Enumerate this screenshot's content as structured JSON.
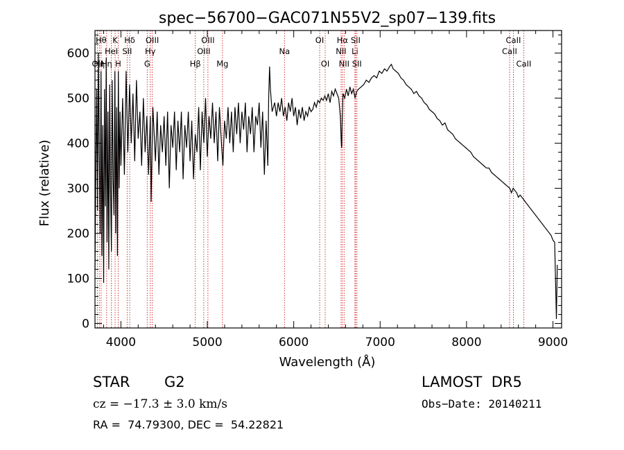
{
  "chart_data": {
    "type": "line",
    "title": "spec−56700−GAC071N55V2_sp07−139.fits",
    "xlabel": "Wavelength (Å)",
    "ylabel": "Flux (relative)",
    "xlim": [
      3700,
      9100
    ],
    "ylim": [
      -10,
      650
    ],
    "xticks": [
      4000,
      5000,
      6000,
      7000,
      8000,
      9000
    ],
    "yticks": [
      0,
      100,
      200,
      300,
      400,
      500,
      600
    ],
    "line_color": "#000000",
    "marker_color": "#cc0000",
    "spectrum": [
      [
        3700,
        120
      ],
      [
        3710,
        340
      ],
      [
        3720,
        520
      ],
      [
        3730,
        250
      ],
      [
        3740,
        600
      ],
      [
        3750,
        380
      ],
      [
        3760,
        200
      ],
      [
        3770,
        560
      ],
      [
        3780,
        150
      ],
      [
        3790,
        440
      ],
      [
        3800,
        90
      ],
      [
        3810,
        520
      ],
      [
        3820,
        260
      ],
      [
        3830,
        590
      ],
      [
        3840,
        180
      ],
      [
        3850,
        470
      ],
      [
        3860,
        120
      ],
      [
        3870,
        530
      ],
      [
        3880,
        300
      ],
      [
        3890,
        160
      ],
      [
        3900,
        540
      ],
      [
        3910,
        320
      ],
      [
        3920,
        240
      ],
      [
        3930,
        560
      ],
      [
        3940,
        200
      ],
      [
        3950,
        480
      ],
      [
        3960,
        150
      ],
      [
        3970,
        560
      ],
      [
        3980,
        300
      ],
      [
        3990,
        470
      ],
      [
        4000,
        350
      ],
      [
        4020,
        500
      ],
      [
        4040,
        330
      ],
      [
        4060,
        560
      ],
      [
        4080,
        380
      ],
      [
        4100,
        530
      ],
      [
        4120,
        400
      ],
      [
        4140,
        510
      ],
      [
        4160,
        360
      ],
      [
        4180,
        540
      ],
      [
        4200,
        410
      ],
      [
        4220,
        470
      ],
      [
        4240,
        350
      ],
      [
        4260,
        500
      ],
      [
        4280,
        380
      ],
      [
        4300,
        460
      ],
      [
        4320,
        330
      ],
      [
        4340,
        460
      ],
      [
        4350,
        270
      ],
      [
        4370,
        480
      ],
      [
        4400,
        360
      ],
      [
        4420,
        470
      ],
      [
        4440,
        330
      ],
      [
        4460,
        440
      ],
      [
        4480,
        380
      ],
      [
        4500,
        460
      ],
      [
        4520,
        350
      ],
      [
        4540,
        470
      ],
      [
        4560,
        300
      ],
      [
        4580,
        440
      ],
      [
        4600,
        390
      ],
      [
        4620,
        470
      ],
      [
        4640,
        340
      ],
      [
        4660,
        450
      ],
      [
        4680,
        380
      ],
      [
        4700,
        470
      ],
      [
        4720,
        320
      ],
      [
        4740,
        440
      ],
      [
        4760,
        390
      ],
      [
        4780,
        470
      ],
      [
        4800,
        360
      ],
      [
        4820,
        450
      ],
      [
        4840,
        320
      ],
      [
        4860,
        420
      ],
      [
        4880,
        380
      ],
      [
        4900,
        480
      ],
      [
        4920,
        340
      ],
      [
        4940,
        470
      ],
      [
        4960,
        400
      ],
      [
        4980,
        500
      ],
      [
        5000,
        370
      ],
      [
        5020,
        460
      ],
      [
        5040,
        410
      ],
      [
        5060,
        490
      ],
      [
        5080,
        400
      ],
      [
        5100,
        470
      ],
      [
        5120,
        360
      ],
      [
        5140,
        480
      ],
      [
        5160,
        410
      ],
      [
        5180,
        350
      ],
      [
        5200,
        450
      ],
      [
        5220,
        410
      ],
      [
        5240,
        480
      ],
      [
        5260,
        400
      ],
      [
        5280,
        470
      ],
      [
        5300,
        380
      ],
      [
        5320,
        480
      ],
      [
        5340,
        420
      ],
      [
        5360,
        490
      ],
      [
        5380,
        400
      ],
      [
        5400,
        470
      ],
      [
        5420,
        430
      ],
      [
        5440,
        490
      ],
      [
        5460,
        380
      ],
      [
        5480,
        460
      ],
      [
        5500,
        420
      ],
      [
        5520,
        480
      ],
      [
        5540,
        380
      ],
      [
        5560,
        460
      ],
      [
        5580,
        440
      ],
      [
        5600,
        490
      ],
      [
        5620,
        390
      ],
      [
        5640,
        470
      ],
      [
        5660,
        330
      ],
      [
        5680,
        450
      ],
      [
        5700,
        350
      ],
      [
        5710,
        500
      ],
      [
        5720,
        570
      ],
      [
        5730,
        520
      ],
      [
        5750,
        470
      ],
      [
        5780,
        490
      ],
      [
        5800,
        460
      ],
      [
        5820,
        490
      ],
      [
        5840,
        470
      ],
      [
        5860,
        500
      ],
      [
        5880,
        460
      ],
      [
        5900,
        480
      ],
      [
        5920,
        450
      ],
      [
        5940,
        490
      ],
      [
        5960,
        470
      ],
      [
        5980,
        500
      ],
      [
        6000,
        460
      ],
      [
        6020,
        480
      ],
      [
        6040,
        440
      ],
      [
        6060,
        475
      ],
      [
        6080,
        455
      ],
      [
        6100,
        480
      ],
      [
        6120,
        450
      ],
      [
        6140,
        470
      ],
      [
        6160,
        460
      ],
      [
        6180,
        480
      ],
      [
        6200,
        470
      ],
      [
        6220,
        475
      ],
      [
        6240,
        490
      ],
      [
        6260,
        480
      ],
      [
        6280,
        495
      ],
      [
        6300,
        490
      ],
      [
        6320,
        500
      ],
      [
        6340,
        495
      ],
      [
        6360,
        505
      ],
      [
        6380,
        495
      ],
      [
        6400,
        510
      ],
      [
        6420,
        490
      ],
      [
        6440,
        515
      ],
      [
        6460,
        505
      ],
      [
        6480,
        520
      ],
      [
        6500,
        510
      ],
      [
        6520,
        500
      ],
      [
        6540,
        460
      ],
      [
        6550,
        400
      ],
      [
        6555,
        390
      ],
      [
        6560,
        440
      ],
      [
        6570,
        510
      ],
      [
        6590,
        500
      ],
      [
        6610,
        520
      ],
      [
        6630,
        505
      ],
      [
        6650,
        525
      ],
      [
        6670,
        510
      ],
      [
        6690,
        520
      ],
      [
        6710,
        500
      ],
      [
        6730,
        515
      ],
      [
        6750,
        520
      ],
      [
        6780,
        525
      ],
      [
        6810,
        530
      ],
      [
        6840,
        540
      ],
      [
        6870,
        535
      ],
      [
        6900,
        545
      ],
      [
        6930,
        550
      ],
      [
        6960,
        545
      ],
      [
        6990,
        560
      ],
      [
        7020,
        555
      ],
      [
        7050,
        565
      ],
      [
        7080,
        560
      ],
      [
        7110,
        570
      ],
      [
        7130,
        575
      ],
      [
        7150,
        565
      ],
      [
        7180,
        560
      ],
      [
        7210,
        555
      ],
      [
        7240,
        545
      ],
      [
        7270,
        540
      ],
      [
        7300,
        530
      ],
      [
        7330,
        525
      ],
      [
        7360,
        520
      ],
      [
        7390,
        510
      ],
      [
        7420,
        515
      ],
      [
        7450,
        505
      ],
      [
        7480,
        500
      ],
      [
        7510,
        490
      ],
      [
        7540,
        485
      ],
      [
        7570,
        475
      ],
      [
        7600,
        470
      ],
      [
        7630,
        465
      ],
      [
        7660,
        455
      ],
      [
        7690,
        450
      ],
      [
        7720,
        440
      ],
      [
        7750,
        445
      ],
      [
        7780,
        430
      ],
      [
        7810,
        425
      ],
      [
        7840,
        420
      ],
      [
        7870,
        410
      ],
      [
        7900,
        405
      ],
      [
        7930,
        400
      ],
      [
        7960,
        395
      ],
      [
        7990,
        390
      ],
      [
        8020,
        385
      ],
      [
        8050,
        380
      ],
      [
        8080,
        370
      ],
      [
        8110,
        365
      ],
      [
        8140,
        360
      ],
      [
        8170,
        355
      ],
      [
        8200,
        350
      ],
      [
        8230,
        345
      ],
      [
        8260,
        345
      ],
      [
        8290,
        335
      ],
      [
        8320,
        330
      ],
      [
        8350,
        325
      ],
      [
        8380,
        320
      ],
      [
        8410,
        315
      ],
      [
        8440,
        310
      ],
      [
        8470,
        305
      ],
      [
        8500,
        300
      ],
      [
        8520,
        290
      ],
      [
        8540,
        300
      ],
      [
        8560,
        295
      ],
      [
        8580,
        290
      ],
      [
        8600,
        280
      ],
      [
        8620,
        285
      ],
      [
        8640,
        280
      ],
      [
        8660,
        275
      ],
      [
        8680,
        270
      ],
      [
        8700,
        265
      ],
      [
        8720,
        260
      ],
      [
        8740,
        255
      ],
      [
        8760,
        250
      ],
      [
        8780,
        245
      ],
      [
        8800,
        240
      ],
      [
        8820,
        235
      ],
      [
        8840,
        230
      ],
      [
        8860,
        225
      ],
      [
        8880,
        220
      ],
      [
        8900,
        215
      ],
      [
        8920,
        210
      ],
      [
        8940,
        205
      ],
      [
        8960,
        200
      ],
      [
        8980,
        195
      ],
      [
        9000,
        185
      ],
      [
        9020,
        180
      ],
      [
        9040,
        10
      ],
      [
        9050,
        130
      ]
    ],
    "line_markers": [
      {
        "wavelength": 3727,
        "label": "OII",
        "row": 3
      },
      {
        "wavelength": 3750,
        "label": "Hη",
        "row": 3
      },
      {
        "wavelength": 3771,
        "label": "Hθ",
        "row": 1
      },
      {
        "wavelength": 3835,
        "label": "Hη",
        "row": 3
      },
      {
        "wavelength": 3889,
        "label": "HeI",
        "row": 2
      },
      {
        "wavelength": 3933,
        "label": "K",
        "row": 1
      },
      {
        "wavelength": 3968,
        "label": "H",
        "row": 3
      },
      {
        "wavelength": 4072,
        "label": "SII",
        "row": 2
      },
      {
        "wavelength": 4102,
        "label": "Hδ",
        "row": 1
      },
      {
        "wavelength": 4304,
        "label": "G",
        "row": 3
      },
      {
        "wavelength": 4340,
        "label": "Hγ",
        "row": 2
      },
      {
        "wavelength": 4363,
        "label": "OIII",
        "row": 1
      },
      {
        "wavelength": 4861,
        "label": "Hβ",
        "row": 3
      },
      {
        "wavelength": 4959,
        "label": "OIII",
        "row": 2
      },
      {
        "wavelength": 5007,
        "label": "OIII",
        "row": 1
      },
      {
        "wavelength": 5175,
        "label": "Mg",
        "row": 3
      },
      {
        "wavelength": 5893,
        "label": "Na",
        "row": 2
      },
      {
        "wavelength": 6300,
        "label": "OI",
        "row": 1
      },
      {
        "wavelength": 6364,
        "label": "OI",
        "row": 3
      },
      {
        "wavelength": 6548,
        "label": "NII",
        "row": 2
      },
      {
        "wavelength": 6563,
        "label": "Hα",
        "row": 1
      },
      {
        "wavelength": 6583,
        "label": "NII",
        "row": 3
      },
      {
        "wavelength": 6708,
        "label": "Li",
        "row": 2
      },
      {
        "wavelength": 6716,
        "label": "SII",
        "row": 1
      },
      {
        "wavelength": 6731,
        "label": "SII",
        "row": 3
      },
      {
        "wavelength": 8498,
        "label": "CaII",
        "row": 2
      },
      {
        "wavelength": 8542,
        "label": "CaII",
        "row": 1
      },
      {
        "wavelength": 8662,
        "label": "CaII",
        "row": 3
      }
    ]
  },
  "info": {
    "object_class": "STAR",
    "subclass": "G2",
    "survey": "LAMOST  DR5",
    "redshift_line": "cz = −17.3 ± 3.0 km/s",
    "obs_date": "Obs−Date: 20140211",
    "coords": "RA =  74.79300, DEC =  54.22821"
  }
}
